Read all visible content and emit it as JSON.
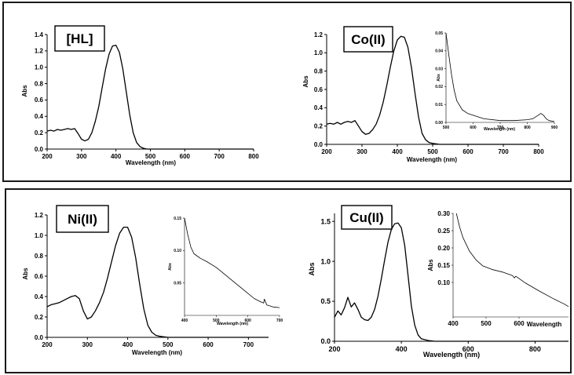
{
  "chart_data": [
    {
      "type": "line",
      "label": "[HL]",
      "xlabel": "Wavelength (nm)",
      "ylabel": "Abs",
      "xlim": [
        200,
        800
      ],
      "ylim": [
        0,
        1.4
      ],
      "xticks": [
        200,
        300,
        400,
        500,
        600,
        700,
        800
      ],
      "yticks": [
        0.0,
        0.2,
        0.4,
        0.6,
        0.8,
        1.0,
        1.2,
        1.4
      ],
      "ytick_decimals": 1,
      "x": [
        200,
        210,
        220,
        230,
        240,
        250,
        260,
        270,
        280,
        290,
        300,
        310,
        320,
        330,
        340,
        350,
        360,
        370,
        380,
        390,
        400,
        410,
        420,
        430,
        440,
        450,
        460,
        470,
        480,
        490,
        500,
        600,
        700,
        800
      ],
      "y": [
        0.22,
        0.23,
        0.22,
        0.24,
        0.23,
        0.24,
        0.25,
        0.24,
        0.25,
        0.19,
        0.12,
        0.1,
        0.12,
        0.2,
        0.34,
        0.52,
        0.75,
        0.98,
        1.16,
        1.26,
        1.27,
        1.18,
        0.98,
        0.7,
        0.42,
        0.2,
        0.08,
        0.03,
        0.01,
        0.0,
        0.0,
        0.0,
        0.0,
        0.0
      ],
      "inset": null
    },
    {
      "type": "line",
      "label": "Co(II)",
      "xlabel": "Wavelength (nm)",
      "ylabel": "Abs",
      "xlim": [
        200,
        800
      ],
      "ylim": [
        0,
        1.2
      ],
      "xticks": [
        200,
        300,
        400,
        500,
        600,
        700,
        800
      ],
      "yticks": [
        0.0,
        0.2,
        0.4,
        0.6,
        0.8,
        1.0,
        1.2
      ],
      "ytick_decimals": 1,
      "x": [
        200,
        210,
        220,
        230,
        240,
        250,
        260,
        270,
        280,
        290,
        300,
        310,
        320,
        330,
        340,
        350,
        360,
        370,
        380,
        390,
        400,
        410,
        420,
        430,
        440,
        450,
        460,
        470,
        480,
        490,
        500,
        520,
        600,
        700,
        800
      ],
      "y": [
        0.22,
        0.23,
        0.22,
        0.24,
        0.22,
        0.24,
        0.25,
        0.24,
        0.26,
        0.2,
        0.14,
        0.11,
        0.12,
        0.16,
        0.22,
        0.32,
        0.46,
        0.64,
        0.84,
        1.02,
        1.14,
        1.18,
        1.17,
        1.06,
        0.84,
        0.56,
        0.3,
        0.12,
        0.05,
        0.02,
        0.01,
        0.0,
        0.0,
        0.0,
        0.0
      ],
      "inset": {
        "xlim": [
          500,
          900
        ],
        "ylim": [
          0,
          0.05
        ],
        "xticks": [
          500,
          600,
          700,
          800,
          900
        ],
        "yticks": [
          0.0,
          0.01,
          0.02,
          0.03,
          0.04,
          0.05
        ],
        "ytick_decimals": 2,
        "xlabel": "Wavelength (nm)",
        "ylabel": "Abs",
        "x": [
          500,
          510,
          520,
          530,
          540,
          560,
          580,
          600,
          640,
          700,
          750,
          800,
          820,
          840,
          850,
          860,
          870,
          880,
          900
        ],
        "y": [
          0.05,
          0.038,
          0.027,
          0.018,
          0.012,
          0.007,
          0.005,
          0.004,
          0.002,
          0.001,
          0.001,
          0.0015,
          0.002,
          0.004,
          0.005,
          0.004,
          0.002,
          0.001,
          0.0005
        ]
      }
    },
    {
      "type": "line",
      "label": "Ni(II)",
      "xlabel": "Wavelength (nm)",
      "ylabel": "Abs",
      "xlim": [
        200,
        750
      ],
      "ylim": [
        0,
        1.2
      ],
      "xticks": [
        200,
        300,
        400,
        500,
        600,
        700
      ],
      "yticks": [
        0.0,
        0.2,
        0.4,
        0.6,
        0.8,
        1.0,
        1.2
      ],
      "ytick_decimals": 1,
      "x": [
        200,
        210,
        220,
        230,
        240,
        250,
        260,
        270,
        280,
        290,
        300,
        310,
        320,
        330,
        340,
        350,
        360,
        370,
        380,
        390,
        400,
        410,
        420,
        430,
        440,
        450,
        460,
        470,
        480,
        500,
        600,
        700,
        750
      ],
      "y": [
        0.3,
        0.32,
        0.33,
        0.34,
        0.36,
        0.38,
        0.4,
        0.41,
        0.38,
        0.26,
        0.18,
        0.2,
        0.26,
        0.34,
        0.44,
        0.58,
        0.74,
        0.9,
        1.02,
        1.08,
        1.08,
        0.98,
        0.78,
        0.52,
        0.28,
        0.12,
        0.05,
        0.02,
        0.01,
        0.0,
        0.0,
        0.0,
        0.0
      ],
      "inset": {
        "xlim": [
          400,
          700
        ],
        "ylim": [
          0,
          0.15
        ],
        "xticks": [
          400,
          500,
          600,
          700
        ],
        "yticks": [
          0.05,
          0.1,
          0.15
        ],
        "ytick_decimals": 2,
        "xlabel": "Wavelength (nm)",
        "ylabel": "Abs",
        "x": [
          400,
          410,
          420,
          430,
          450,
          470,
          500,
          530,
          560,
          590,
          620,
          640,
          650,
          652,
          660,
          680,
          700
        ],
        "y": [
          0.15,
          0.125,
          0.105,
          0.095,
          0.088,
          0.083,
          0.074,
          0.062,
          0.05,
          0.038,
          0.026,
          0.021,
          0.019,
          0.025,
          0.016,
          0.013,
          0.012
        ]
      }
    },
    {
      "type": "line",
      "label": "Cu(II)",
      "xlabel": "Wavelength (nm)",
      "ylabel": "Abs",
      "xlim": [
        200,
        900
      ],
      "ylim": [
        0,
        1.6
      ],
      "xticks": [
        200,
        400,
        600,
        800
      ],
      "yticks": [
        0.0,
        0.5,
        1.0,
        1.5
      ],
      "ytick_decimals": 1,
      "x": [
        200,
        210,
        220,
        230,
        240,
        250,
        260,
        270,
        280,
        290,
        300,
        310,
        320,
        330,
        340,
        350,
        360,
        370,
        380,
        390,
        400,
        410,
        420,
        430,
        440,
        450,
        460,
        480,
        500,
        600,
        700,
        800,
        900
      ],
      "y": [
        0.3,
        0.38,
        0.33,
        0.42,
        0.55,
        0.43,
        0.48,
        0.4,
        0.3,
        0.27,
        0.26,
        0.3,
        0.4,
        0.56,
        0.78,
        1.02,
        1.24,
        1.4,
        1.47,
        1.48,
        1.42,
        1.2,
        0.82,
        0.44,
        0.2,
        0.08,
        0.03,
        0.01,
        0.0,
        0.0,
        0.0,
        0.0,
        0.0
      ],
      "inset": {
        "xlim": [
          400,
          750
        ],
        "ylim": [
          0,
          0.3
        ],
        "xticks": [
          400,
          500,
          600
        ],
        "yticks": [
          0.1,
          0.15,
          0.2,
          0.25,
          0.3
        ],
        "ytick_decimals": 2,
        "xlabel": "Wavelength",
        "ylabel": "Abs",
        "x": [
          410,
          420,
          430,
          450,
          470,
          490,
          520,
          550,
          580,
          586,
          590,
          620,
          660,
          700,
          740,
          750
        ],
        "y": [
          0.3,
          0.26,
          0.23,
          0.19,
          0.165,
          0.148,
          0.137,
          0.13,
          0.12,
          0.113,
          0.118,
          0.098,
          0.076,
          0.055,
          0.036,
          0.03
        ]
      }
    }
  ]
}
